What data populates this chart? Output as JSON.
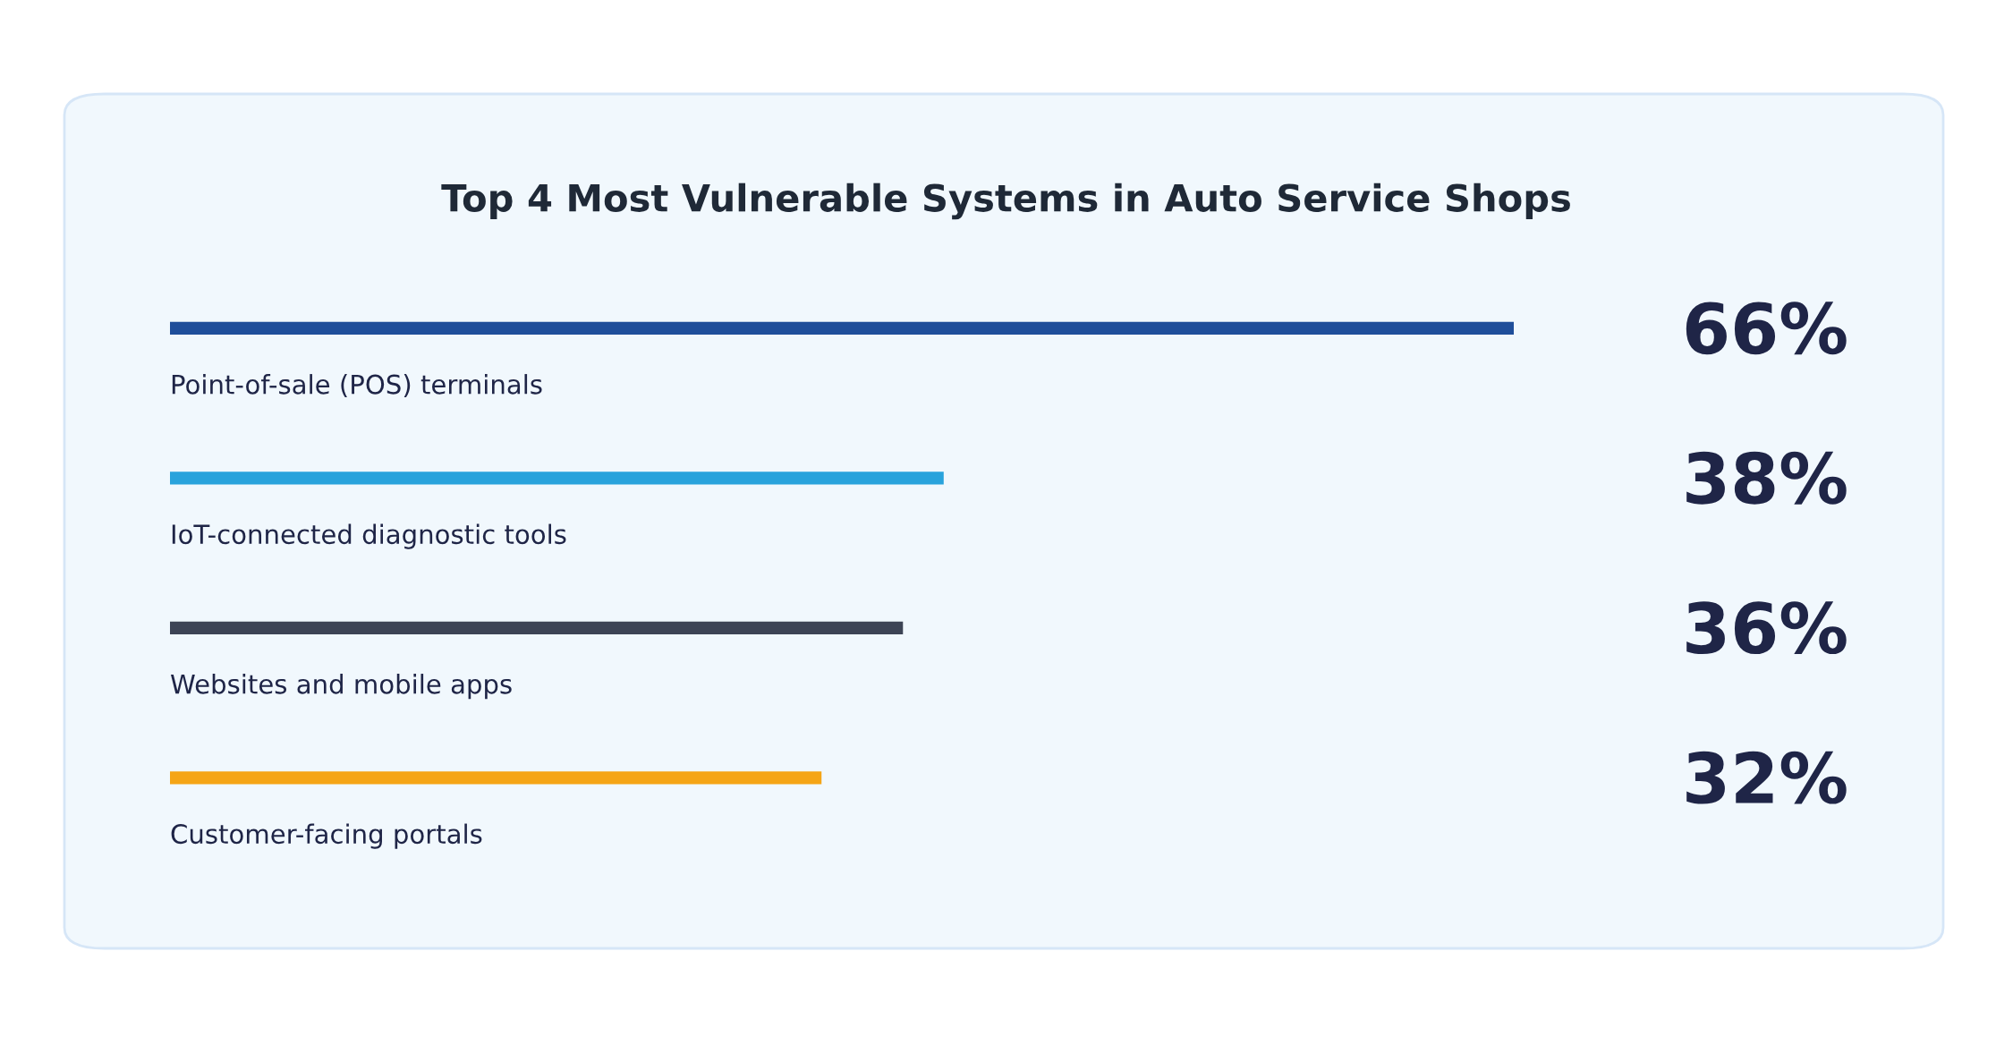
{
  "chart_data": {
    "type": "bar",
    "orientation": "horizontal",
    "title": "Top 4 Most Vulnerable Systems in Auto Service Shops",
    "categories": [
      "Point-of-sale (POS) terminals",
      "IoT-connected diagnostic tools",
      "Websites and mobile apps",
      "Customer-facing portals"
    ],
    "values": [
      66,
      38,
      36,
      32
    ],
    "colors": [
      "#1f4e9a",
      "#29a3dc",
      "#3d4455",
      "#f5a516"
    ],
    "value_labels": [
      "66%",
      "38%",
      "36%",
      "32%"
    ]
  }
}
